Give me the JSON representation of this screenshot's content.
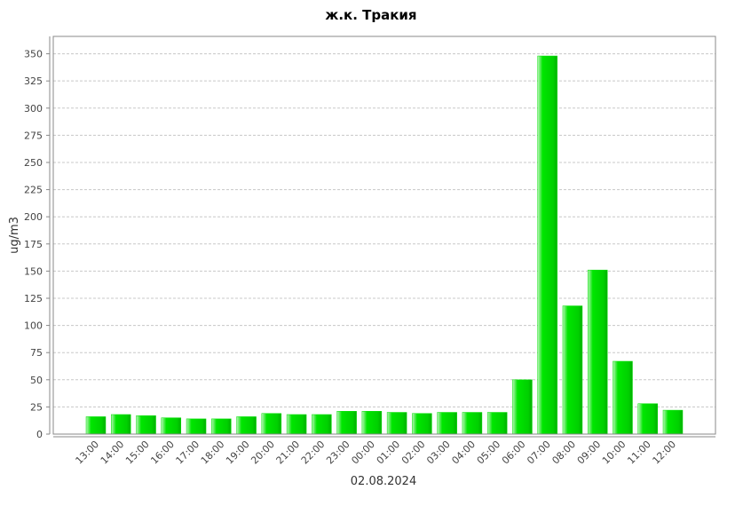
{
  "chart_data": {
    "type": "bar",
    "title": "ж.к. Тракия",
    "x_label": "02.08.2024",
    "y_label": "ug/m3",
    "categories": [
      "13:00",
      "14:00",
      "15:00",
      "16:00",
      "17:00",
      "18:00",
      "19:00",
      "20:00",
      "21:00",
      "22:00",
      "23:00",
      "00:00",
      "01:00",
      "02:00",
      "03:00",
      "04:00",
      "05:00",
      "06:00",
      "07:00",
      "08:00",
      "09:00",
      "10:00",
      "11:00",
      "12:00"
    ],
    "values": [
      16,
      18,
      17,
      15,
      14,
      14,
      16,
      19,
      18,
      18,
      21,
      21,
      20,
      19,
      20,
      20,
      20,
      50,
      348,
      118,
      151,
      67,
      28,
      22
    ],
    "color": "#00e000",
    "ylim": [
      0,
      366
    ],
    "yticks": [
      0,
      25,
      50,
      75,
      100,
      125,
      150,
      175,
      200,
      225,
      250,
      275,
      300,
      325,
      350
    ],
    "grid": true
  }
}
